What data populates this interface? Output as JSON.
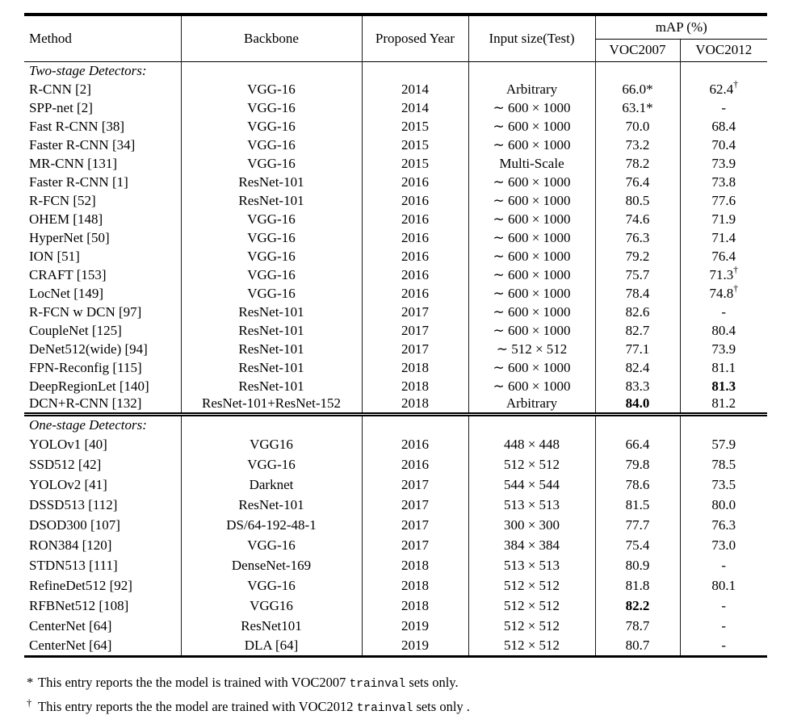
{
  "header": {
    "method": "Method",
    "backbone": "Backbone",
    "year": "Proposed Year",
    "input": "Input size(Test)",
    "map": "mAP (%)",
    "voc2007": "VOC2007",
    "voc2012": "VOC2012"
  },
  "sections": [
    {
      "label": "Two-stage Detectors:",
      "rows": [
        [
          "R-CNN [2]",
          "VGG-16",
          "2014",
          "Arbitrary",
          {
            "v": "66.0",
            "mark": "*"
          },
          {
            "v": "62.4",
            "mark": "†"
          }
        ],
        [
          "SPP-net [2]",
          "VGG-16",
          "2014",
          "∼ 600 × 1000",
          {
            "v": "63.1",
            "mark": "*"
          },
          "-"
        ],
        [
          "Fast R-CNN [38]",
          "VGG-16",
          "2015",
          "∼ 600 × 1000",
          "70.0",
          "68.4"
        ],
        [
          "Faster R-CNN [34]",
          "VGG-16",
          "2015",
          "∼ 600 × 1000",
          "73.2",
          "70.4"
        ],
        [
          "MR-CNN [131]",
          "VGG-16",
          "2015",
          "Multi-Scale",
          "78.2",
          "73.9"
        ],
        [
          "Faster R-CNN [1]",
          "ResNet-101",
          "2016",
          "∼ 600 × 1000",
          "76.4",
          "73.8"
        ],
        [
          "R-FCN [52]",
          "ResNet-101",
          "2016",
          "∼ 600 × 1000",
          "80.5",
          "77.6"
        ],
        [
          "OHEM [148]",
          "VGG-16",
          "2016",
          "∼ 600 × 1000",
          "74.6",
          "71.9"
        ],
        [
          "HyperNet [50]",
          "VGG-16",
          "2016",
          "∼ 600 × 1000",
          "76.3",
          "71.4"
        ],
        [
          "ION [51]",
          "VGG-16",
          "2016",
          "∼ 600 × 1000",
          "79.2",
          "76.4"
        ],
        [
          "CRAFT [153]",
          "VGG-16",
          "2016",
          "∼ 600 × 1000",
          "75.7",
          {
            "v": "71.3",
            "mark": "†"
          }
        ],
        [
          "LocNet [149]",
          "VGG-16",
          "2016",
          "∼ 600 × 1000",
          "78.4",
          {
            "v": "74.8",
            "mark": "†"
          }
        ],
        [
          "R-FCN w DCN [97]",
          "ResNet-101",
          "2017",
          "∼ 600 × 1000",
          "82.6",
          "-"
        ],
        [
          "CoupleNet [125]",
          "ResNet-101",
          "2017",
          "∼ 600 × 1000",
          "82.7",
          "80.4"
        ],
        [
          "DeNet512(wide) [94]",
          "ResNet-101",
          "2017",
          "∼ 512 × 512",
          "77.1",
          "73.9"
        ],
        [
          "FPN-Reconfig [115]",
          "ResNet-101",
          "2018",
          "∼ 600 × 1000",
          "82.4",
          "81.1"
        ],
        [
          "DeepRegionLet [140]",
          "ResNet-101",
          "2018",
          "∼ 600 × 1000",
          "83.3",
          {
            "v": "81.3",
            "bold": true
          }
        ],
        [
          "DCN+R-CNN [132]",
          "ResNet-101+ResNet-152",
          "2018",
          "Arbitrary",
          {
            "v": "84.0",
            "bold": true
          },
          "81.2"
        ]
      ]
    },
    {
      "label": "One-stage Detectors:",
      "rows": [
        [
          "YOLOv1 [40]",
          "VGG16",
          "2016",
          "448 × 448",
          "66.4",
          "57.9"
        ],
        [
          "SSD512 [42]",
          "VGG-16",
          "2016",
          "512 × 512",
          "79.8",
          "78.5"
        ],
        [
          "YOLOv2 [41]",
          "Darknet",
          "2017",
          "544 × 544",
          "78.6",
          "73.5"
        ],
        [
          "DSSD513 [112]",
          "ResNet-101",
          "2017",
          "513 × 513",
          "81.5",
          "80.0"
        ],
        [
          "DSOD300 [107]",
          "DS/64-192-48-1",
          "2017",
          "300 × 300",
          "77.7",
          "76.3"
        ],
        [
          "RON384 [120]",
          "VGG-16",
          "2017",
          "384 × 384",
          "75.4",
          "73.0"
        ],
        [
          "STDN513 [111]",
          "DenseNet-169",
          "2018",
          "513 × 513",
          "80.9",
          "-"
        ],
        [
          "RefineDet512 [92]",
          "VGG-16",
          "2018",
          "512 × 512",
          "81.8",
          "80.1"
        ],
        [
          "RFBNet512 [108]",
          "VGG16",
          "2018",
          "512 × 512",
          {
            "v": "82.2",
            "bold": true
          },
          "-"
        ],
        [
          "CenterNet [64]",
          "ResNet101",
          "2019",
          "512 × 512",
          "78.7",
          "-"
        ],
        [
          "CenterNet [64]",
          "DLA [64]",
          "2019",
          "512 × 512",
          "80.7",
          "-"
        ]
      ]
    }
  ],
  "footnotes": [
    {
      "mark": "*",
      "pre": "This entry reports the the model is trained with VOC2007",
      "code": "trainval",
      "post": "sets only."
    },
    {
      "mark": "†",
      "pre": "This entry reports the the model are trained with VOC2012",
      "code": "trainval",
      "post": "sets only ."
    }
  ]
}
